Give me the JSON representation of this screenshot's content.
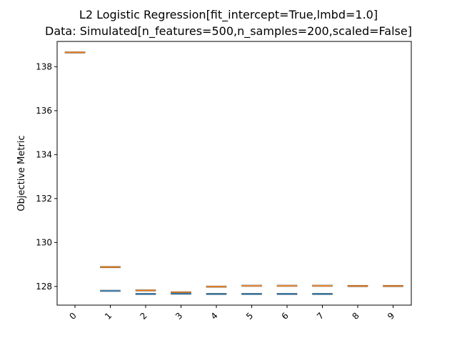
{
  "chart_data": {
    "type": "box",
    "title_line1": "L2 Logistic Regression[fit_intercept=True,lmbd=1.0]",
    "title_line2": "Data: Simulated[n_features=500,n_samples=200,scaled=False]",
    "xlabel": "",
    "ylabel": "Objective Metric",
    "categories": [
      "0",
      "1",
      "2",
      "3",
      "4",
      "5",
      "6",
      "7",
      "8",
      "9"
    ],
    "ylim": [
      127.15,
      139.15
    ],
    "yticks": [
      128,
      130,
      132,
      134,
      136,
      138
    ],
    "grid": false,
    "series": [
      {
        "color": "#ff7f0e",
        "values": [
          138.65,
          128.88,
          127.82,
          127.73,
          127.99,
          128.03,
          128.03,
          128.03,
          128.02,
          128.02
        ]
      },
      {
        "color": "#1f77b4",
        "values": [
          null,
          127.8,
          127.66,
          127.67,
          127.66,
          127.66,
          127.66,
          127.66,
          null,
          null
        ]
      }
    ]
  }
}
